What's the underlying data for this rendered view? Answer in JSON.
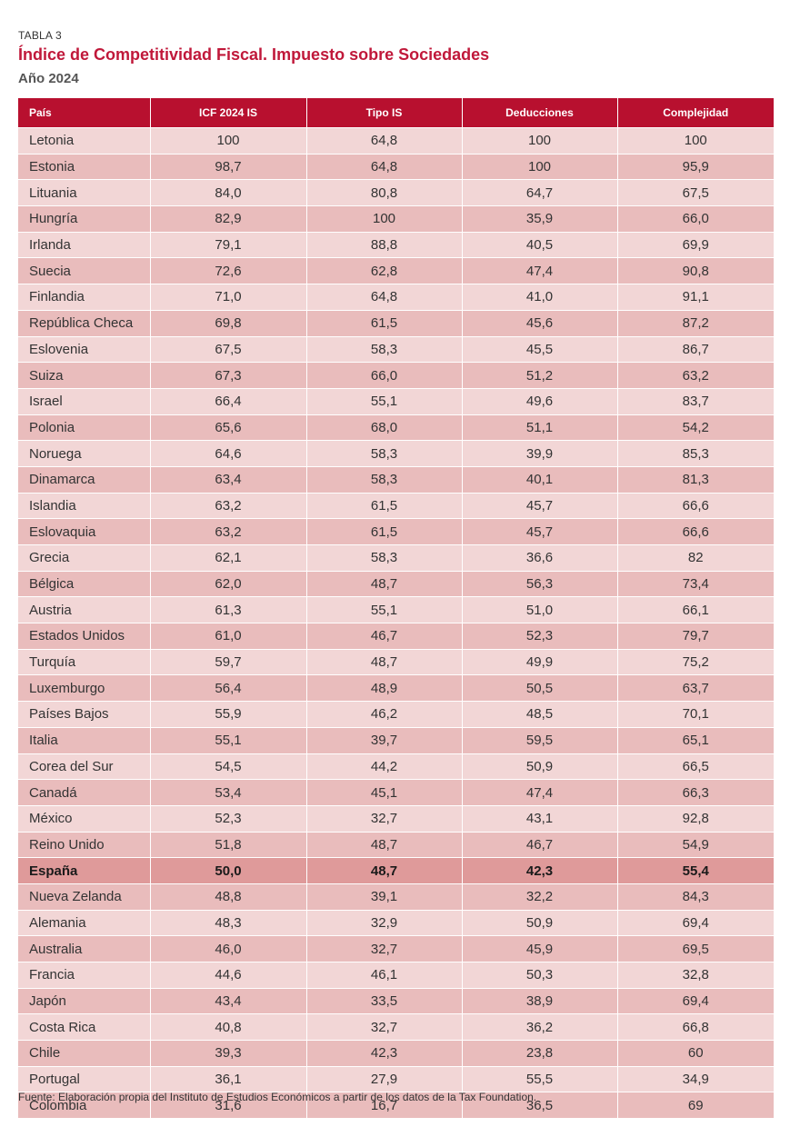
{
  "header": {
    "label": "TABLA 3",
    "title": "Índice de Competitividad Fiscal. Impuesto sobre Sociedades",
    "subtitle": "Año 2024"
  },
  "table": {
    "columns": [
      "País",
      "ICF 2024 IS",
      "Tipo IS",
      "Deducciones",
      "Complejidad"
    ],
    "rows": [
      [
        "Letonia",
        "100",
        "64,8",
        "100",
        "100"
      ],
      [
        "Estonia",
        "98,7",
        "64,8",
        "100",
        "95,9"
      ],
      [
        "Lituania",
        "84,0",
        "80,8",
        "64,7",
        "67,5"
      ],
      [
        "Hungría",
        "82,9",
        "100",
        "35,9",
        "66,0"
      ],
      [
        "Irlanda",
        "79,1",
        "88,8",
        "40,5",
        "69,9"
      ],
      [
        "Suecia",
        "72,6",
        "62,8",
        "47,4",
        "90,8"
      ],
      [
        "Finlandia",
        "71,0",
        "64,8",
        "41,0",
        "91,1"
      ],
      [
        "República Checa",
        "69,8",
        "61,5",
        "45,6",
        "87,2"
      ],
      [
        "Eslovenia",
        "67,5",
        "58,3",
        "45,5",
        "86,7"
      ],
      [
        "Suiza",
        "67,3",
        "66,0",
        "51,2",
        "63,2"
      ],
      [
        "Israel",
        "66,4",
        "55,1",
        "49,6",
        "83,7"
      ],
      [
        "Polonia",
        "65,6",
        "68,0",
        "51,1",
        "54,2"
      ],
      [
        "Noruega",
        "64,6",
        "58,3",
        "39,9",
        "85,3"
      ],
      [
        "Dinamarca",
        "63,4",
        "58,3",
        "40,1",
        "81,3"
      ],
      [
        "Islandia",
        "63,2",
        "61,5",
        "45,7",
        "66,6"
      ],
      [
        "Eslovaquia",
        "63,2",
        "61,5",
        "45,7",
        "66,6"
      ],
      [
        "Grecia",
        "62,1",
        "58,3",
        "36,6",
        "82"
      ],
      [
        "Bélgica",
        "62,0",
        "48,7",
        "56,3",
        "73,4"
      ],
      [
        "Austria",
        "61,3",
        "55,1",
        "51,0",
        "66,1"
      ],
      [
        "Estados Unidos",
        "61,0",
        "46,7",
        "52,3",
        "79,7"
      ],
      [
        "Turquía",
        "59,7",
        "48,7",
        "49,9",
        "75,2"
      ],
      [
        "Luxemburgo",
        "56,4",
        "48,9",
        "50,5",
        "63,7"
      ],
      [
        "Países Bajos",
        "55,9",
        "46,2",
        "48,5",
        "70,1"
      ],
      [
        "Italia",
        "55,1",
        "39,7",
        "59,5",
        "65,1"
      ],
      [
        "Corea del Sur",
        "54,5",
        "44,2",
        "50,9",
        "66,5"
      ],
      [
        "Canadá",
        "53,4",
        "45,1",
        "47,4",
        "66,3"
      ],
      [
        "México",
        "52,3",
        "32,7",
        "43,1",
        "92,8"
      ],
      [
        "Reino Unido",
        "51,8",
        "48,7",
        "46,7",
        "54,9"
      ],
      [
        "España",
        "50,0",
        "48,7",
        "42,3",
        "55,4"
      ],
      [
        "Nueva Zelanda",
        "48,8",
        "39,1",
        "32,2",
        "84,3"
      ],
      [
        "Alemania",
        "48,3",
        "32,9",
        "50,9",
        "69,4"
      ],
      [
        "Australia",
        "46,0",
        "32,7",
        "45,9",
        "69,5"
      ],
      [
        "Francia",
        "44,6",
        "46,1",
        "50,3",
        "32,8"
      ],
      [
        "Japón",
        "43,4",
        "33,5",
        "38,9",
        "69,4"
      ],
      [
        "Costa Rica",
        "40,8",
        "32,7",
        "36,2",
        "66,8"
      ],
      [
        "Chile",
        "39,3",
        "42,3",
        "23,8",
        "60"
      ],
      [
        "Portugal",
        "36,1",
        "27,9",
        "55,5",
        "34,9"
      ],
      [
        "Colombia",
        "31,6",
        "16,7",
        "36,5",
        "69"
      ]
    ],
    "highlight_row": "España"
  },
  "footer": {
    "source": "Fuente: Elaboración propia del Instituto de Estudios Económicos a partir de los datos de la Tax Foundation."
  }
}
